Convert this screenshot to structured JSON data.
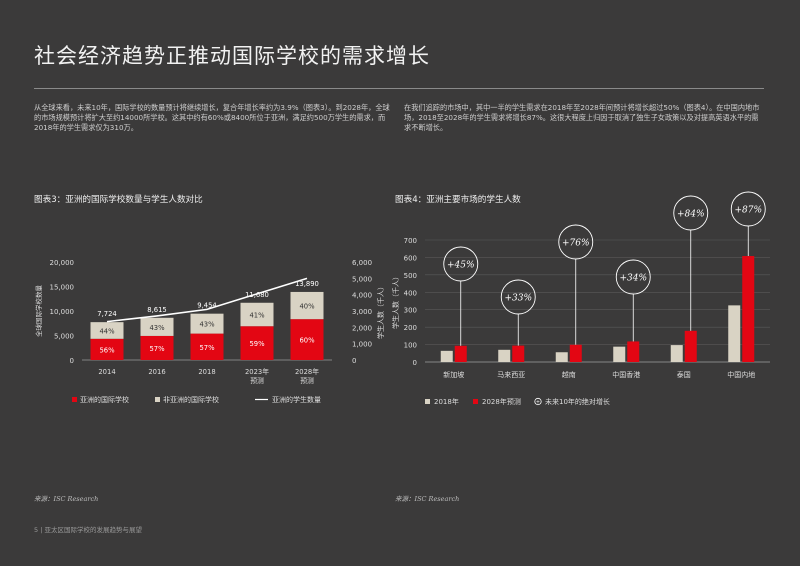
{
  "page": {
    "title": "社会经济趋势正推动国际学校的需求增长",
    "para_left": "从全球来看，未来10年，国际学校的数量预计将继续增长，复合年增长率约为3.9%（图表3）。到2028年，全球的市场规模预计将扩大至约14000所学校。这其中约有60%或8400所位于亚洲，满足约500万学生的需求，而2018年的学生需求仅为310万。",
    "para_right": "在我们追踪的市场中，其中一半的学生需求在2018年至2028年间预计将增长超过50%（图表4）。在中国内地市场，2018至2028年的学生需求将增长87%。这很大程度上归因于取消了独生子女政策以及对提高英语水平的需求不断增长。",
    "source_left": "来源：ISC Research",
    "source_right": "来源：ISC Research",
    "footer": "5  |  亚太区国际学校的发展趋势与展望"
  },
  "chart_data": [
    {
      "type": "bar",
      "title": "图表3：亚洲的国际学校数量与学生人数对比",
      "categories": [
        "2014",
        "2016",
        "2018",
        "2023年\n预测",
        "2028年\n预测"
      ],
      "ylabel": "全球国际学校数量",
      "y2label": "学生人数（千人）",
      "ylim": [
        0,
        20000
      ],
      "yticks": [
        "0",
        "5,000",
        "10,000",
        "15,000",
        "20,000"
      ],
      "y2lim": [
        0,
        6000
      ],
      "y2ticks": [
        "0",
        "1,000",
        "2,000",
        "3,000",
        "4,000",
        "5,000",
        "6,000"
      ],
      "totals": [
        "7,724",
        "8,615",
        "9,454",
        "11,680",
        "13,890"
      ],
      "total_values": [
        7724,
        8615,
        9454,
        11680,
        13890
      ],
      "series": [
        {
          "name": "亚洲的国际学校",
          "color": "#e30613",
          "values": [
            4325,
            4911,
            5389,
            6891,
            8334
          ],
          "labels": [
            "56%",
            "57%",
            "57%",
            "59%",
            "60%"
          ]
        },
        {
          "name": "非亚洲的国际学校",
          "color": "#d9d3c4",
          "values": [
            3399,
            3704,
            4065,
            4789,
            5556
          ],
          "labels": [
            "44%",
            "43%",
            "43%",
            "41%",
            "40%"
          ]
        }
      ],
      "line": {
        "name": "亚洲的学生数量",
        "color": "#ffffff",
        "values": [
          2350,
          2700,
          3100,
          4050,
          5000
        ]
      }
    },
    {
      "type": "bar",
      "title": "图表4：亚洲主要市场的学生人数",
      "categories": [
        "新加坡",
        "马来西亚",
        "越南",
        "中国香港",
        "泰国",
        "中国内地"
      ],
      "ylabel": "学生人数（千人）",
      "ylim": [
        0,
        700
      ],
      "yticks": [
        "0",
        "100",
        "200",
        "300",
        "400",
        "500",
        "600",
        "700"
      ],
      "series": [
        {
          "name": "2018年",
          "color": "#d9d3c4",
          "values": [
            64,
            70,
            56,
            88,
            97,
            325
          ]
        },
        {
          "name": "2028年预测",
          "color": "#e30613",
          "values": [
            93,
            94,
            99,
            118,
            179,
            608
          ]
        }
      ],
      "growth": {
        "name": "未来10年的绝对增长",
        "labels": [
          "+45%",
          "+33%",
          "+76%",
          "+34%",
          "+84%",
          "+87%"
        ]
      }
    }
  ]
}
